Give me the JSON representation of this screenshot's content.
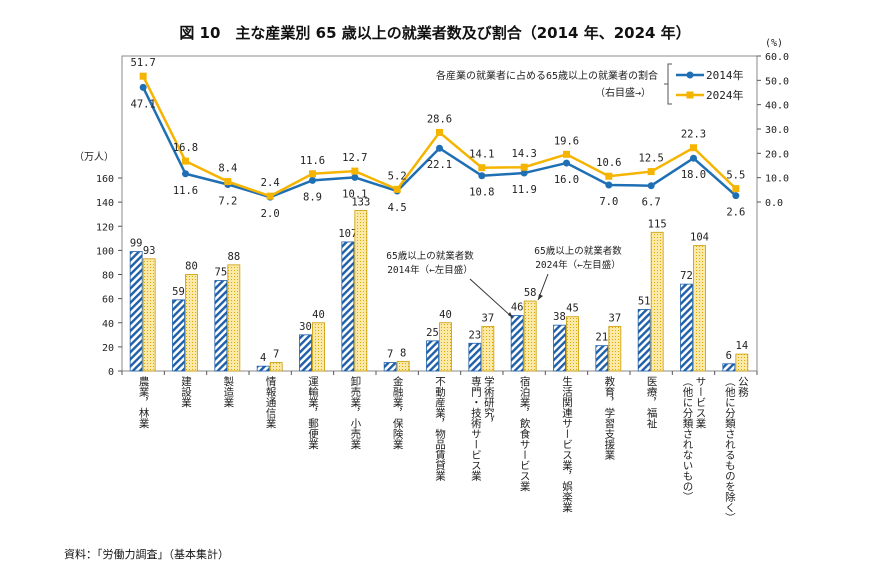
{
  "title": "図 10　主な産業別 65 歳以上の就業者数及び割合（2014 年、2024 年）",
  "source": "資料：「労働力調査」（基本集計）",
  "chart_data": {
    "type": "bar+line",
    "categories": [
      "農業，林業",
      "建設業",
      "製造業",
      "情報通信業",
      "運輸業，郵便業",
      "卸売業，小売業",
      "金融業，保険業",
      "不動産業，物品賃貸業",
      "学術研究，\n専門・技術サービス業",
      "宿泊業，飲食サービス業",
      "生活関連サービス業，娯楽業",
      "教育，学習支援業",
      "医療，福祉",
      "サービス業\n（他に分類されないもの）",
      "公務\n（他に分類されるものを除く）"
    ],
    "left_axis": {
      "label": "（万人）",
      "range": [
        0,
        160
      ],
      "ticks": [
        0,
        20,
        40,
        60,
        80,
        100,
        120,
        140,
        160
      ]
    },
    "right_axis": {
      "label": "(%)",
      "range": [
        0,
        60
      ],
      "ticks": [
        "0.0",
        "10.0",
        "20.0",
        "30.0",
        "40.0",
        "50.0",
        "60.0"
      ]
    },
    "bar_series": [
      {
        "name": "2014年",
        "label": "65歳以上の就業者数\n2014年（←左目盛）",
        "color": "#1f5fa8",
        "values": [
          99,
          59,
          75,
          4,
          30,
          107,
          7,
          25,
          23,
          46,
          38,
          21,
          51,
          72,
          6
        ]
      },
      {
        "name": "2024年",
        "label": "65歳以上の就業者数\n2024年（←左目盛）",
        "color": "#f2c037",
        "values": [
          93,
          80,
          88,
          7,
          40,
          133,
          8,
          40,
          37,
          58,
          45,
          37,
          115,
          104,
          14
        ]
      }
    ],
    "line_series": [
      {
        "name": "2014年",
        "color": "#1f6fb4",
        "values": [
          47.1,
          11.6,
          7.2,
          2.0,
          8.9,
          10.1,
          4.5,
          22.1,
          10.8,
          11.9,
          16.0,
          7.0,
          6.7,
          18.0,
          2.6
        ]
      },
      {
        "name": "2024年",
        "color": "#f5b400",
        "values": [
          51.7,
          16.8,
          8.4,
          2.4,
          11.6,
          12.7,
          5.2,
          28.6,
          14.1,
          14.3,
          19.6,
          10.6,
          12.5,
          22.3,
          5.5
        ]
      }
    ],
    "line_legend_title": "各産業の就業者に占める65歳以上の就業者の割合",
    "line_legend_sub": "（右目盛→）",
    "legend_placement": "top-right"
  }
}
